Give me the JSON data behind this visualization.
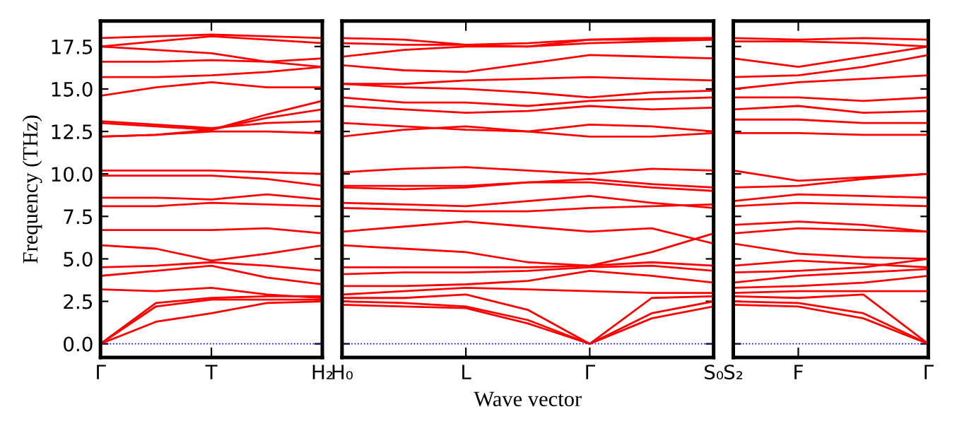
{
  "chart_data": [
    {
      "type": "line",
      "ylabel": "Frequency (THz)",
      "categories": [
        "Γ",
        null,
        "T",
        null,
        "H₂"
      ],
      "ylim": [
        -0.8,
        19.0
      ],
      "yticks": [
        {
          "value": 0,
          "label": "0.0"
        },
        2.5,
        {
          "value": 5,
          "label": "5.0"
        },
        7.5,
        {
          "value": 10,
          "label": "10.0"
        },
        12.5,
        {
          "value": 15,
          "label": "15.0"
        },
        17.5
      ],
      "grid": false,
      "ref_lines": [
        {
          "axis": "y",
          "value": 0,
          "color": "#0000ff",
          "line_style": "dotted"
        }
      ],
      "series": [
        {
          "color": "#ff0000",
          "values": [
            0,
            1.3,
            1.8,
            2.4,
            2.5
          ]
        },
        {
          "color": "#ff0000",
          "values": [
            0,
            2.2,
            2.6,
            2.6,
            2.6
          ]
        },
        {
          "color": "#ff0000",
          "values": [
            0,
            2.4,
            2.7,
            2.8,
            2.8
          ]
        },
        {
          "color": "#ff0000",
          "values": [
            3.2,
            3.1,
            3.3,
            2.9,
            2.7
          ]
        },
        {
          "color": "#ff0000",
          "values": [
            4.0,
            4.3,
            4.6,
            3.9,
            3.5
          ]
        },
        {
          "color": "#ff0000",
          "values": [
            4.5,
            4.6,
            4.8,
            4.6,
            4.3
          ]
        },
        {
          "color": "#ff0000",
          "values": [
            5.8,
            5.6,
            4.9,
            5.3,
            5.8
          ]
        },
        {
          "color": "#ff0000",
          "values": [
            6.7,
            6.7,
            6.7,
            6.8,
            6.5
          ]
        },
        {
          "color": "#ff0000",
          "values": [
            8.1,
            8.1,
            8.3,
            8.2,
            8.1
          ]
        },
        {
          "color": "#ff0000",
          "values": [
            8.6,
            8.6,
            8.5,
            8.8,
            8.5
          ]
        },
        {
          "color": "#ff0000",
          "values": [
            9.9,
            9.9,
            9.9,
            9.7,
            9.3
          ]
        },
        {
          "color": "#ff0000",
          "values": [
            10.2,
            10.2,
            10.2,
            10.1,
            10.0
          ]
        },
        {
          "color": "#ff0000",
          "values": [
            12.2,
            12.3,
            12.6,
            13.3,
            13.8
          ]
        },
        {
          "color": "#ff0000",
          "values": [
            12.2,
            12.3,
            12.5,
            12.5,
            12.4
          ]
        },
        {
          "color": "#ff0000",
          "values": [
            13.0,
            12.8,
            12.6,
            13.5,
            14.3
          ]
        },
        {
          "color": "#ff0000",
          "values": [
            13.1,
            12.9,
            12.7,
            13.0,
            13.1
          ]
        },
        {
          "color": "#ff0000",
          "values": [
            14.6,
            15.1,
            15.4,
            15.1,
            15.1
          ]
        },
        {
          "color": "#ff0000",
          "values": [
            15.7,
            15.7,
            15.8,
            16.0,
            16.3
          ]
        },
        {
          "color": "#ff0000",
          "values": [
            16.6,
            16.6,
            16.7,
            16.6,
            16.8
          ]
        },
        {
          "color": "#ff0000",
          "values": [
            17.5,
            17.3,
            17.1,
            16.6,
            16.3
          ]
        },
        {
          "color": "#ff0000",
          "values": [
            17.5,
            17.8,
            18.1,
            17.9,
            17.7
          ]
        },
        {
          "color": "#ff0000",
          "values": [
            18.0,
            18.1,
            18.2,
            18.1,
            18.0
          ]
        }
      ]
    },
    {
      "type": "line",
      "xlabel": "Wave vector",
      "categories": [
        "H₀",
        null,
        "L",
        null,
        "Γ",
        null,
        "S₀"
      ],
      "ylim": [
        -0.8,
        19.0
      ],
      "yticks": [
        0,
        2.5,
        5,
        7.5,
        10,
        12.5,
        15,
        17.5
      ],
      "tick_labels": "x",
      "grid": false,
      "ref_lines": [
        {
          "axis": "y",
          "value": 0,
          "color": "#0000ff",
          "line_style": "dotted"
        }
      ],
      "series": [
        {
          "color": "#ff0000",
          "values": [
            2.3,
            2.2,
            2.1,
            1.2,
            0,
            1.5,
            2.2
          ]
        },
        {
          "color": "#ff0000",
          "values": [
            2.5,
            2.4,
            2.2,
            1.4,
            0,
            1.8,
            2.5
          ]
        },
        {
          "color": "#ff0000",
          "values": [
            2.7,
            2.7,
            2.9,
            2.0,
            0,
            2.7,
            2.8
          ]
        },
        {
          "color": "#ff0000",
          "values": [
            2.9,
            3.1,
            3.3,
            3.2,
            3.1,
            3.0,
            3.0
          ]
        },
        {
          "color": "#ff0000",
          "values": [
            3.4,
            3.4,
            3.5,
            3.7,
            4.3,
            4.0,
            3.6
          ]
        },
        {
          "color": "#ff0000",
          "values": [
            4.1,
            4.2,
            4.2,
            4.3,
            4.5,
            4.6,
            4.3
          ]
        },
        {
          "color": "#ff0000",
          "values": [
            4.5,
            4.5,
            4.5,
            4.5,
            4.6,
            4.8,
            4.6
          ]
        },
        {
          "color": "#ff0000",
          "values": [
            5.8,
            5.6,
            5.4,
            4.8,
            4.6,
            5.4,
            6.5
          ]
        },
        {
          "color": "#ff0000",
          "values": [
            6.6,
            6.9,
            7.2,
            6.9,
            6.6,
            6.8,
            5.9
          ]
        },
        {
          "color": "#ff0000",
          "values": [
            8.0,
            7.9,
            7.8,
            7.8,
            8.0,
            8.1,
            8.2
          ]
        },
        {
          "color": "#ff0000",
          "values": [
            8.3,
            8.2,
            8.1,
            8.4,
            8.7,
            8.3,
            8.0
          ]
        },
        {
          "color": "#ff0000",
          "values": [
            9.2,
            9.1,
            9.2,
            9.5,
            9.5,
            9.2,
            9.0
          ]
        },
        {
          "color": "#ff0000",
          "values": [
            9.3,
            9.3,
            9.3,
            9.5,
            9.7,
            9.4,
            9.2
          ]
        },
        {
          "color": "#ff0000",
          "values": [
            10.1,
            10.3,
            10.4,
            10.2,
            10.0,
            10.3,
            10.2
          ]
        },
        {
          "color": "#ff0000",
          "values": [
            12.2,
            12.6,
            12.8,
            12.5,
            12.2,
            12.2,
            12.4
          ]
        },
        {
          "color": "#ff0000",
          "values": [
            13.0,
            12.8,
            12.6,
            12.5,
            12.9,
            12.8,
            12.5
          ]
        },
        {
          "color": "#ff0000",
          "values": [
            14.0,
            13.8,
            13.6,
            13.7,
            14.0,
            13.8,
            13.9
          ]
        },
        {
          "color": "#ff0000",
          "values": [
            14.5,
            14.2,
            14.2,
            14.0,
            14.3,
            14.4,
            14.5
          ]
        },
        {
          "color": "#ff0000",
          "values": [
            15.3,
            15.1,
            15.0,
            14.8,
            14.5,
            14.8,
            14.9
          ]
        },
        {
          "color": "#ff0000",
          "values": [
            15.3,
            15.3,
            15.5,
            15.6,
            15.7,
            15.6,
            15.5
          ]
        },
        {
          "color": "#ff0000",
          "values": [
            16.4,
            16.1,
            16.0,
            16.5,
            17.0,
            16.9,
            16.8
          ]
        },
        {
          "color": "#ff0000",
          "values": [
            16.9,
            17.3,
            17.5,
            17.5,
            17.7,
            17.8,
            17.9
          ]
        },
        {
          "color": "#ff0000",
          "values": [
            17.7,
            17.6,
            17.6,
            17.5,
            17.9,
            17.9,
            18.0
          ]
        },
        {
          "color": "#ff0000",
          "values": [
            18.0,
            17.9,
            17.6,
            17.7,
            17.9,
            18.0,
            18.0
          ]
        }
      ]
    },
    {
      "type": "line",
      "categories": [
        "S₂",
        "F",
        null,
        "Γ"
      ],
      "ylim": [
        -0.8,
        19.0
      ],
      "yticks": [
        0,
        2.5,
        5,
        7.5,
        10,
        12.5,
        15,
        17.5
      ],
      "tick_labels": "x",
      "grid": false,
      "ref_lines": [
        {
          "axis": "y",
          "value": 0,
          "color": "#0000ff",
          "line_style": "dotted"
        }
      ],
      "series": [
        {
          "color": "#ff0000",
          "values": [
            2.3,
            2.2,
            1.5,
            0
          ]
        },
        {
          "color": "#ff0000",
          "values": [
            2.5,
            2.4,
            1.8,
            0
          ]
        },
        {
          "color": "#ff0000",
          "values": [
            2.8,
            2.7,
            2.9,
            0
          ]
        },
        {
          "color": "#ff0000",
          "values": [
            3.0,
            3.1,
            3.1,
            3.1
          ]
        },
        {
          "color": "#ff0000",
          "values": [
            3.3,
            3.4,
            3.6,
            4.0
          ]
        },
        {
          "color": "#ff0000",
          "values": [
            3.6,
            4.0,
            4.2,
            4.4
          ]
        },
        {
          "color": "#ff0000",
          "values": [
            4.2,
            4.3,
            4.5,
            5.0
          ]
        },
        {
          "color": "#ff0000",
          "values": [
            4.6,
            4.9,
            4.7,
            4.5
          ]
        },
        {
          "color": "#ff0000",
          "values": [
            5.9,
            5.3,
            5.1,
            5.0
          ]
        },
        {
          "color": "#ff0000",
          "values": [
            6.5,
            6.8,
            6.7,
            6.6
          ]
        },
        {
          "color": "#ff0000",
          "values": [
            7.0,
            7.2,
            7.0,
            6.6
          ]
        },
        {
          "color": "#ff0000",
          "values": [
            8.1,
            8.3,
            8.2,
            8.1
          ]
        },
        {
          "color": "#ff0000",
          "values": [
            8.4,
            8.8,
            8.7,
            8.6
          ]
        },
        {
          "color": "#ff0000",
          "values": [
            9.2,
            9.3,
            9.7,
            10.0
          ]
        },
        {
          "color": "#ff0000",
          "values": [
            10.2,
            9.6,
            9.8,
            10.0
          ]
        },
        {
          "color": "#ff0000",
          "values": [
            12.4,
            12.4,
            12.3,
            12.3
          ]
        },
        {
          "color": "#ff0000",
          "values": [
            13.2,
            13.2,
            13.0,
            13.0
          ]
        },
        {
          "color": "#ff0000",
          "values": [
            13.8,
            14.0,
            13.6,
            13.7
          ]
        },
        {
          "color": "#ff0000",
          "values": [
            14.5,
            14.5,
            14.3,
            14.5
          ]
        },
        {
          "color": "#ff0000",
          "values": [
            15.0,
            15.4,
            15.6,
            15.8
          ]
        },
        {
          "color": "#ff0000",
          "values": [
            15.7,
            15.8,
            16.3,
            17.0
          ]
        },
        {
          "color": "#ff0000",
          "values": [
            16.8,
            16.3,
            16.9,
            17.5
          ]
        },
        {
          "color": "#ff0000",
          "values": [
            17.8,
            17.8,
            17.7,
            17.5
          ]
        },
        {
          "color": "#ff0000",
          "values": [
            18.0,
            17.9,
            18.0,
            17.9
          ]
        }
      ]
    }
  ]
}
